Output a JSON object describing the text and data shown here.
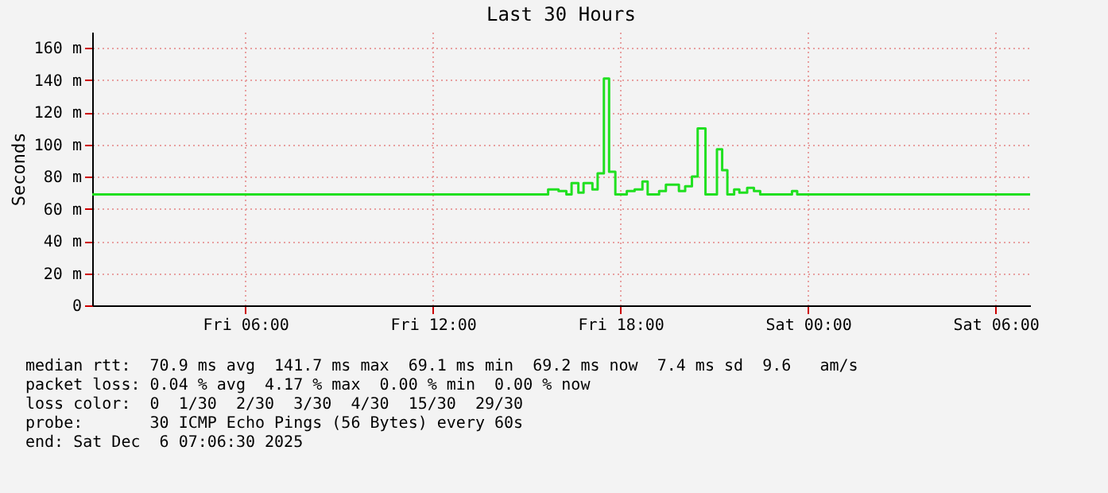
{
  "chart_data": {
    "type": "step",
    "title": "Last 30 Hours",
    "ylabel": "Seconds",
    "x": [
      "2025-12-05T01:06",
      "2025-12-05T15:41",
      "2025-12-05T16:01",
      "2025-12-05T16:16",
      "2025-12-05T16:26",
      "2025-12-05T16:39",
      "2025-12-05T16:49",
      "2025-12-05T17:06",
      "2025-12-05T17:16",
      "2025-12-05T17:28",
      "2025-12-05T17:38",
      "2025-12-05T17:50",
      "2025-12-05T18:12",
      "2025-12-05T18:27",
      "2025-12-05T18:42",
      "2025-12-05T18:52",
      "2025-12-05T19:14",
      "2025-12-05T19:27",
      "2025-12-05T19:37",
      "2025-12-05T19:52",
      "2025-12-05T20:04",
      "2025-12-05T20:17",
      "2025-12-05T20:28",
      "2025-12-05T20:43",
      "2025-12-05T21:05",
      "2025-12-05T21:15",
      "2025-12-05T21:25",
      "2025-12-05T21:38",
      "2025-12-05T21:48",
      "2025-12-05T22:03",
      "2025-12-05T22:16",
      "2025-12-05T22:28",
      "2025-12-05T23:29",
      "2025-12-05T23:39",
      "2025-12-06T07:06"
    ],
    "series": [
      {
        "color": "#20e020",
        "values": [
          69,
          72,
          71,
          69,
          76,
          70,
          76,
          72,
          82,
          141,
          83,
          69,
          71,
          72,
          77,
          69,
          71,
          75,
          75,
          71,
          74,
          80,
          110,
          69,
          97,
          84,
          69,
          72,
          70,
          73,
          71,
          69,
          71,
          69,
          69
        ]
      }
    ],
    "xlim": [
      "2025-12-05T01:06",
      "2025-12-06T07:06"
    ],
    "xticks": [
      {
        "value": "2025-12-05T06:00",
        "label": "Fri 06:00"
      },
      {
        "value": "2025-12-05T12:00",
        "label": "Fri 12:00"
      },
      {
        "value": "2025-12-05T18:00",
        "label": "Fri 18:00"
      },
      {
        "value": "2025-12-06T00:00",
        "label": "Sat 00:00"
      },
      {
        "value": "2025-12-06T06:00",
        "label": "Sat 06:00"
      }
    ],
    "ylim": [
      0,
      170
    ],
    "yticks": [
      0,
      {
        "value": 20,
        "label": "20 m"
      },
      {
        "value": 40,
        "label": "40 m"
      },
      {
        "value": 60,
        "label": "60 m"
      },
      {
        "value": 80,
        "label": "80 m"
      },
      {
        "value": 100,
        "label": "100 m"
      },
      {
        "value": 120,
        "label": "120 m"
      },
      {
        "value": 140,
        "label": "140 m"
      },
      {
        "value": 160,
        "label": "160 m"
      }
    ],
    "grid": true,
    "marker": "none",
    "line_style": "solid",
    "annotations": [
      "median rtt:  70.9 ms avg  141.7 ms max  69.1 ms min  69.2 ms now  7.4 ms sd  9.6   am/s",
      "packet loss: 0.04 % avg  4.17 % max  0.00 % min  0.00 % now",
      "loss color:  0  1/30  2/30  3/30  4/30  15/30  29/30",
      "probe:       30 ICMP Echo Pings (56 Bytes) every 60s",
      "end: Sat Dec  6 07:06:30 2025"
    ]
  }
}
